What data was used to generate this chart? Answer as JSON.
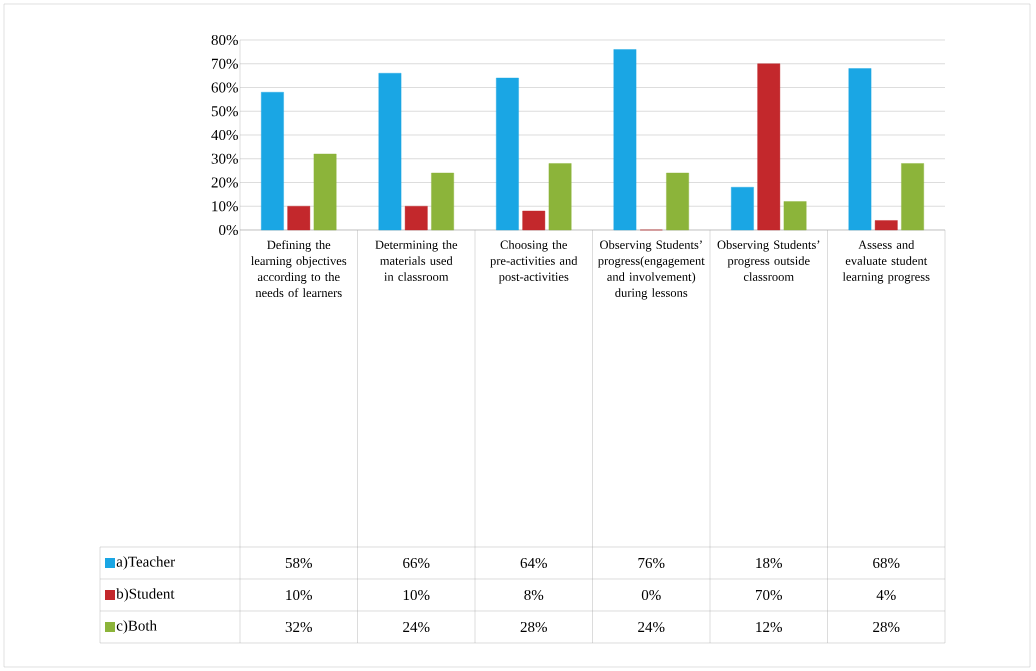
{
  "chart_data": {
    "type": "bar",
    "categories": [
      "Defining the learning objectives according to the needs of learners",
      "Determining the materials used in classroom",
      "Choosing the pre-activities and post-activities",
      "Observing Students’ progress(engagement and involvement) during lessons",
      "Observing Students’ progress outside classroom",
      "Assess and evaluate student learning progress"
    ],
    "series": [
      {
        "name": "a)Teacher",
        "color": "#1aa6e4",
        "values": [
          58,
          66,
          64,
          76,
          18,
          68
        ],
        "value_labels": [
          "58%",
          "66%",
          "64%",
          "76%",
          "18%",
          "68%"
        ]
      },
      {
        "name": "b)Student",
        "color": "#c3282c",
        "values": [
          10,
          10,
          8,
          0,
          70,
          4
        ],
        "value_labels": [
          "10%",
          "10%",
          "8%",
          "0%",
          "70%",
          "4%"
        ]
      },
      {
        "name": "c)Both",
        "color": "#8cb43a",
        "values": [
          32,
          24,
          28,
          24,
          12,
          28
        ],
        "value_labels": [
          "32%",
          "24%",
          "28%",
          "24%",
          "12%",
          "28%"
        ]
      }
    ],
    "ylim": [
      0,
      80
    ],
    "yticks": [
      {
        "value": 0,
        "label": "0%"
      },
      {
        "value": 10,
        "label": "10%"
      },
      {
        "value": 20,
        "label": "20%"
      },
      {
        "value": 30,
        "label": "30%"
      },
      {
        "value": 40,
        "label": "40%"
      },
      {
        "value": 50,
        "label": "50%"
      },
      {
        "value": 60,
        "label": "60%"
      },
      {
        "value": 70,
        "label": "70%"
      },
      {
        "value": 80,
        "label": "80%"
      }
    ],
    "grid": "y",
    "legend": "bottom left"
  }
}
